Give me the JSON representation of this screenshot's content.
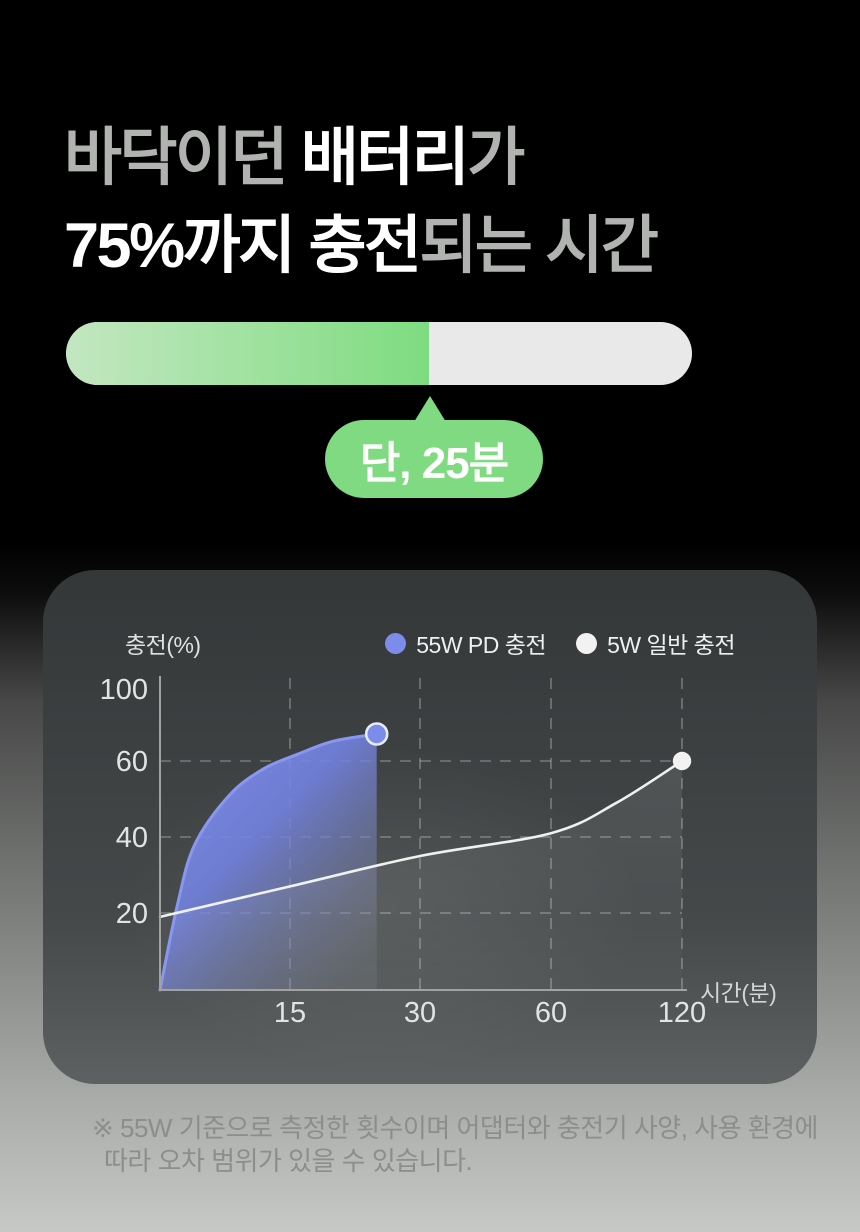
{
  "colors": {
    "green": "#7fda81",
    "fill-start": "#c3e7c1",
    "fill-end": "#7edc80",
    "track": "#e9e9e9",
    "headline-gray": "#b1b3b1",
    "headline-white": "#ffffff",
    "blue": "#7c8cea",
    "footnote": "#8b8e8b"
  },
  "headline": {
    "l1_gray1": "바닥이던 ",
    "l1_white": "배터리",
    "l1_gray2": "가",
    "l2_white": "75%까지 충전",
    "l2_gray": "되는 시간"
  },
  "progress": {
    "fill_percent": 58
  },
  "badge": {
    "label": "단, 25분"
  },
  "chart_data": {
    "type": "line",
    "title": "",
    "ylabel": "충전(%)",
    "xlabel": "시간(분)",
    "x_ticks": [
      15,
      30,
      60,
      120
    ],
    "y_ticks": [
      20,
      40,
      60,
      100
    ],
    "grid_x": [
      15,
      30,
      60,
      120
    ],
    "grid_y": [
      20,
      40,
      60
    ],
    "xlim": [
      0,
      120
    ],
    "ylim": [
      0,
      100
    ],
    "legend_position": "top-right",
    "series": [
      {
        "name": "55W PD 충전",
        "color": "#7c8cea",
        "style": "area",
        "points": [
          [
            0,
            0
          ],
          [
            2,
            22
          ],
          [
            4,
            38
          ],
          [
            8,
            51
          ],
          [
            12,
            58
          ],
          [
            16,
            64
          ],
          [
            20,
            71
          ],
          [
            25,
            75
          ]
        ]
      },
      {
        "name": "5W 일반 충전",
        "color": "#f2f2f2",
        "style": "line",
        "points": [
          [
            0,
            19
          ],
          [
            15,
            27
          ],
          [
            30,
            35
          ],
          [
            60,
            41
          ],
          [
            90,
            49
          ],
          [
            120,
            60
          ]
        ]
      }
    ]
  },
  "footnote": {
    "line1": "※ 55W 기준으로 측정한 횟수이며 어댑터와 충전기 사양, 사용 환경에",
    "line2": "따라 오차 범위가 있을 수 있습니다."
  }
}
